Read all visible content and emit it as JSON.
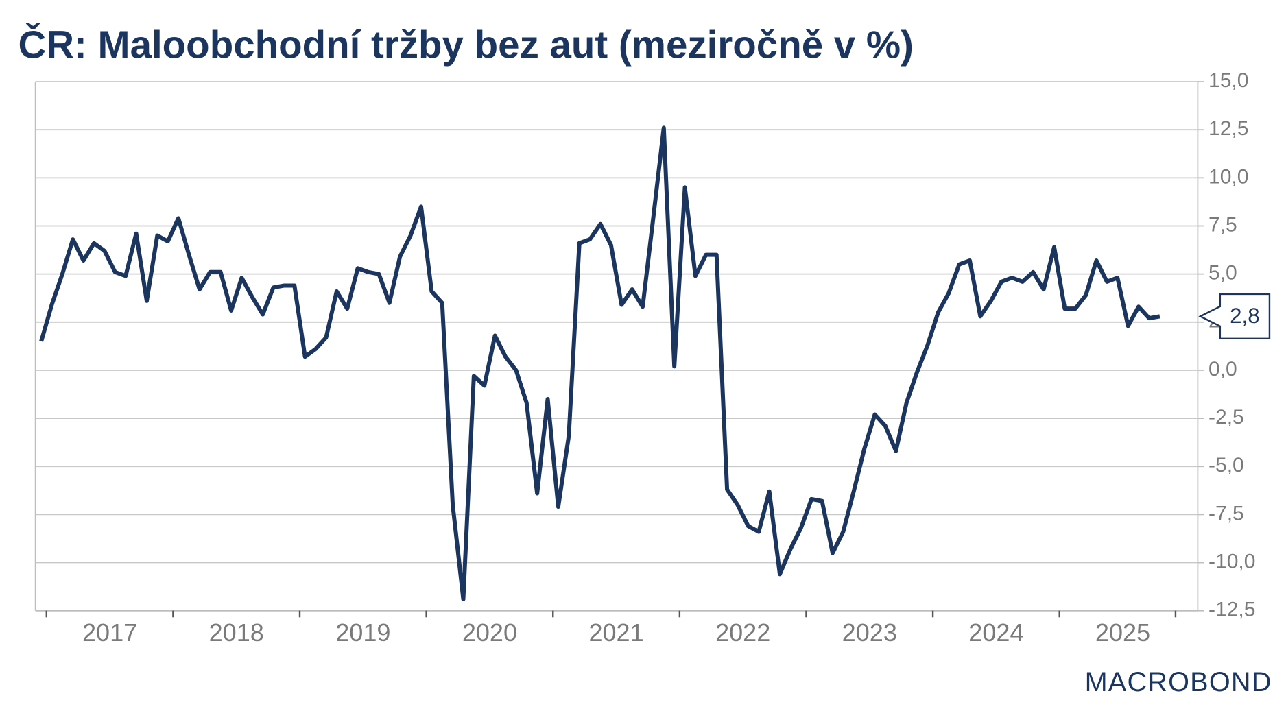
{
  "chart_data": {
    "type": "line",
    "title": "ČR: Maloobchodní tržby bez aut (meziročně v %)",
    "logo": "MACROBOND",
    "color": "#1c355e",
    "grid": true,
    "categories": [
      null,
      null,
      null,
      null,
      null,
      null,
      null,
      "2017",
      null,
      null,
      null,
      null,
      null,
      null,
      null,
      null,
      null,
      null,
      null,
      "2018",
      null,
      null,
      null,
      null,
      null,
      null,
      null,
      null,
      null,
      null,
      null,
      "2019",
      null,
      null,
      null,
      null,
      null,
      null,
      null,
      null,
      null,
      null,
      null,
      "2020",
      null,
      null,
      null,
      null,
      null,
      null,
      null,
      null,
      null,
      null,
      null,
      "2021",
      null,
      null,
      null,
      null,
      null,
      null,
      null,
      null,
      null,
      null,
      null,
      "2022",
      null,
      null,
      null,
      null,
      null,
      null,
      null,
      null,
      null,
      null,
      null,
      "2023",
      null,
      null,
      null,
      null,
      null,
      null,
      null,
      null,
      null,
      null,
      null,
      "2024",
      null,
      null,
      null,
      null,
      null,
      null,
      null,
      null,
      null,
      null,
      null,
      "2025",
      null,
      null,
      null
    ],
    "values": [
      1.5,
      3.4,
      5.0,
      6.8,
      5.7,
      6.6,
      6.2,
      5.1,
      4.9,
      7.1,
      3.6,
      7.0,
      6.7,
      7.9,
      6.0,
      4.2,
      5.1,
      5.1,
      3.1,
      4.8,
      3.8,
      2.9,
      4.3,
      4.4,
      4.4,
      0.7,
      1.1,
      1.7,
      4.1,
      3.2,
      5.3,
      5.1,
      5.0,
      3.5,
      5.9,
      7.0,
      8.5,
      4.1,
      3.5,
      -7.0,
      -11.9,
      -0.3,
      -0.8,
      1.8,
      0.7,
      0.0,
      -1.7,
      -6.4,
      -1.5,
      -7.1,
      -3.4,
      6.6,
      6.8,
      7.6,
      6.5,
      3.4,
      4.2,
      3.3,
      7.9,
      12.6,
      0.2,
      9.5,
      4.9,
      6.0,
      6.0,
      -6.2,
      -7.0,
      -8.1,
      -8.4,
      -6.3,
      -10.6,
      -9.3,
      -8.2,
      -6.7,
      -6.8,
      -9.5,
      -8.4,
      -6.3,
      -4.1,
      -2.3,
      -2.9,
      -4.2,
      -1.7,
      -0.1,
      1.3,
      3.0,
      4.0,
      5.5,
      5.7,
      2.8,
      3.6,
      4.6,
      4.8,
      4.6,
      5.1,
      4.2,
      6.4,
      3.2,
      3.2,
      3.9,
      5.7,
      4.6,
      4.8,
      2.3,
      3.3,
      2.7,
      2.8
    ],
    "value_labels": [
      null,
      null,
      null,
      null,
      null,
      null,
      null,
      null,
      null,
      null,
      null,
      null,
      null,
      null,
      null,
      null,
      null,
      null,
      null,
      null,
      null,
      null,
      null,
      null,
      null,
      null,
      null,
      null,
      null,
      null,
      null,
      null,
      null,
      null,
      null,
      null,
      null,
      null,
      null,
      null,
      null,
      null,
      null,
      null,
      null,
      null,
      null,
      null,
      null,
      null,
      null,
      null,
      null,
      null,
      null,
      null,
      null,
      null,
      null,
      null,
      null,
      null,
      null,
      null,
      null,
      null,
      null,
      null,
      null,
      null,
      null,
      null,
      null,
      null,
      null,
      null,
      null,
      null,
      null,
      null,
      null,
      null,
      null,
      null,
      null,
      null,
      null,
      null,
      null,
      null,
      null,
      null,
      null,
      null,
      null,
      null,
      null,
      null,
      null,
      null,
      null,
      null,
      null,
      null,
      null,
      null,
      "2,8"
    ],
    "ylim": [
      -12.5,
      15
    ],
    "yticks": [
      {
        "value": -12.5,
        "label": "-12,5"
      },
      {
        "value": -10,
        "label": "-10,0"
      },
      {
        "value": -7.5,
        "label": "-7,5"
      },
      {
        "value": -5,
        "label": "-5,0"
      },
      {
        "value": -2.5,
        "label": "-2,5"
      },
      {
        "value": 0,
        "label": "0,0"
      },
      {
        "value": 2.5,
        "label": "2,5"
      },
      {
        "value": 5,
        "label": "5,0"
      },
      {
        "value": 7.5,
        "label": "7,5"
      },
      {
        "value": 10,
        "label": "10,0"
      },
      {
        "value": 12.5,
        "label": "12,5"
      },
      {
        "value": 15,
        "label": "15,0"
      }
    ]
  }
}
